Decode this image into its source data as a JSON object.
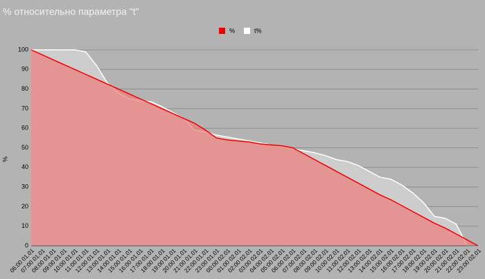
{
  "chart_data": {
    "type": "area",
    "title": "% относительно параметра \"t\"",
    "ylabel": "%",
    "categories": [
      "06:00 01.01",
      "07:00 01.01",
      "08:00 01.01",
      "09:00 01.01",
      "10:00 01.01",
      "11:00 01.01",
      "12:00 01.01",
      "13:00 01.01",
      "14:00 01.01",
      "15:00 01.01",
      "16:00 01.01",
      "17:00 01.01",
      "18:00 01.01",
      "19:00 01.01",
      "20:00 01.01",
      "21:00 01.01",
      "22:00 01.01",
      "23:00 01.01",
      "00:00 02.01",
      "01:00 02.01",
      "02:00 02.01",
      "03:00 02.01",
      "04:00 02.01",
      "05:00 02.01",
      "06:00 02.01",
      "07:00 02.01",
      "08:00 02.01",
      "09:00 02.01",
      "10:00 02.01",
      "11:00 02.01",
      "12:00 02.01",
      "13:00 02.01",
      "14:00 02.01",
      "15:00 02.01",
      "16:00 02.01",
      "17:00 02.01",
      "18:00 02.01",
      "19:00 02.01",
      "20:00 02.01",
      "21:00 02.01",
      "22:00 02.01",
      "23:00 02.01"
    ],
    "series": [
      {
        "name": "%",
        "color": "#ee0000",
        "values": [
          100,
          97.5,
          95,
          92.5,
          90,
          87.5,
          85,
          82.5,
          80,
          77.5,
          75,
          72.5,
          70,
          67.5,
          65,
          62.5,
          59,
          55,
          54,
          53.5,
          53,
          52,
          51.5,
          51,
          50,
          47,
          44,
          41,
          38,
          35,
          32,
          29,
          26,
          23.5,
          20.5,
          17.5,
          14.5,
          11.5,
          9,
          6,
          3,
          0
        ]
      },
      {
        "name": "t%",
        "color": "#ffffff",
        "values": [
          100,
          100,
          100,
          100,
          100,
          99,
          92,
          83,
          78,
          75,
          74,
          73.5,
          71,
          68,
          65,
          59,
          58,
          56.5,
          55.5,
          54.5,
          53.5,
          52.5,
          51.5,
          50.5,
          49.5,
          48.5,
          47.5,
          46,
          44,
          43,
          41,
          38,
          35,
          34,
          31,
          27,
          22,
          15,
          14,
          11,
          0,
          0
        ]
      }
    ],
    "ylim": [
      0,
      100
    ],
    "yticks": [
      0,
      10,
      20,
      30,
      40,
      50,
      60,
      70,
      80,
      90,
      100
    ],
    "grid": true,
    "legend": "top"
  }
}
